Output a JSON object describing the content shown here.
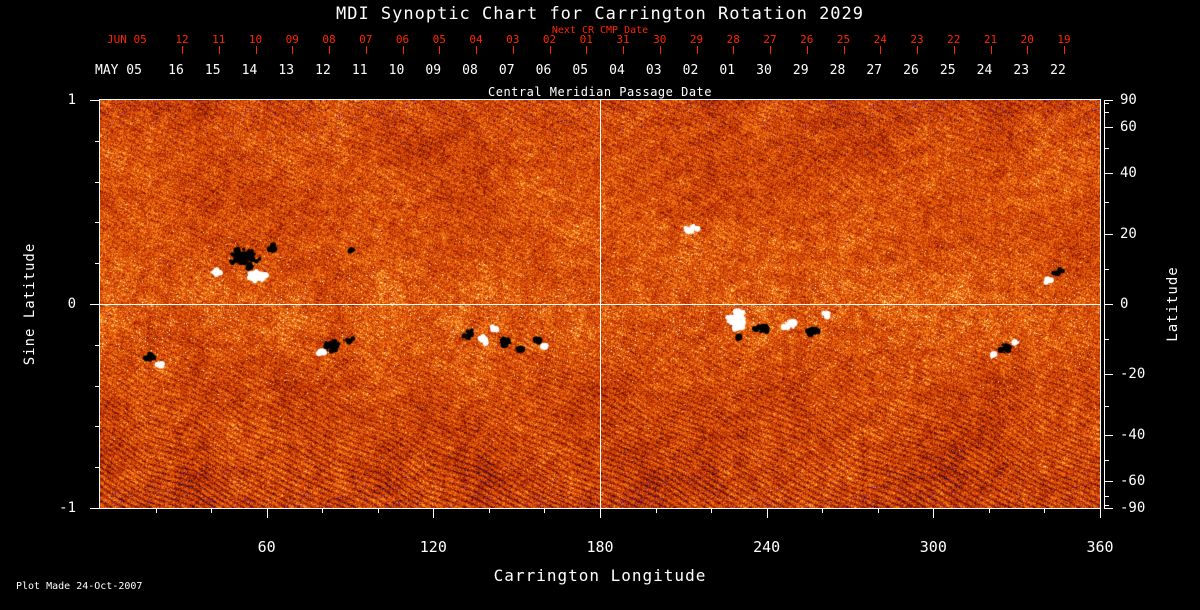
{
  "title": "MDI Synoptic Chart for Carrington Rotation 2029",
  "subtitle_red": "Next CR CMP Date",
  "footer": "Plot Made 24-Oct-2007",
  "axes": {
    "top_red": {
      "label": "JUN 05",
      "ticks": [
        "12",
        "11",
        "10",
        "09",
        "08",
        "07",
        "06",
        "05",
        "04",
        "03",
        "02",
        "01",
        "31",
        "30",
        "29",
        "28",
        "27",
        "26",
        "25",
        "24",
        "23",
        "22",
        "21",
        "20",
        "19"
      ]
    },
    "top_white": {
      "label": "MAY 05",
      "ticks": [
        "16",
        "15",
        "14",
        "13",
        "12",
        "11",
        "10",
        "09",
        "08",
        "07",
        "06",
        "05",
        "04",
        "03",
        "02",
        "01",
        "30",
        "29",
        "28",
        "27",
        "26",
        "25",
        "24",
        "23",
        "22"
      ]
    },
    "top_caption": "Central Meridian Passage Date",
    "bottom": {
      "label": "Carrington Longitude",
      "ticks": [
        "60",
        "120",
        "180",
        "240",
        "300",
        "360"
      ]
    },
    "left": {
      "label": "Sine Latitude",
      "ticks": [
        "1",
        "0",
        "-1"
      ]
    },
    "right": {
      "label": "Latitude",
      "ticks": [
        "90",
        "60",
        "40",
        "20",
        "0",
        "-20",
        "-40",
        "-60",
        "-90"
      ]
    }
  },
  "colors": {
    "background": "#000000",
    "text": "#ffffff",
    "accent_red": "#ff2600",
    "grid": "#ffffff"
  },
  "chart_data": {
    "type": "heatmap",
    "title": "MDI Synoptic Chart for Carrington Rotation 2029",
    "xlabel": "Carrington Longitude",
    "ylabel_left": "Sine Latitude",
    "ylabel_right": "Latitude",
    "x_range": [
      0,
      360
    ],
    "x_ticks": [
      60,
      120,
      180,
      240,
      300,
      360
    ],
    "y_range_sine_latitude": [
      -1,
      1
    ],
    "y_ticks_sine_latitude": [
      1,
      0,
      -1
    ],
    "y_ticks_latitude_deg": [
      90,
      60,
      40,
      20,
      0,
      -20,
      -40,
      -60,
      -90
    ],
    "reference_lines": {
      "vertical_carrington_longitude": 180,
      "horizontal_sine_latitude": 0
    },
    "top_axis_red": {
      "month": "JUN 05",
      "caption": "Next CR CMP Date",
      "days": [
        12,
        11,
        10,
        9,
        8,
        7,
        6,
        5,
        4,
        3,
        2,
        1,
        31,
        30,
        29,
        28,
        27,
        26,
        25,
        24,
        23,
        22,
        21,
        20,
        19
      ]
    },
    "top_axis_white": {
      "month": "MAY 05",
      "caption": "Central Meridian Passage Date",
      "days": [
        16,
        15,
        14,
        13,
        12,
        11,
        10,
        9,
        8,
        7,
        6,
        5,
        4,
        3,
        2,
        1,
        30,
        29,
        28,
        27,
        26,
        25,
        24,
        23,
        22
      ]
    },
    "colormap": "solar magnetogram: orange/red mottled background flux, white = strong positive polarity, black = strong negative polarity, blue/purple specks = noisy edge pixels, diagonal dark streaking strongest in southern hemisphere",
    "colormap_colors": [
      "#1e0a5a",
      "#7c1602",
      "#b73002",
      "#e05408",
      "#f27c18",
      "#fcb03e",
      "#fed880",
      "#fff8de",
      "#000000",
      "#ffffff"
    ],
    "active_regions": [
      {
        "carrington_longitude": 52,
        "latitude_deg": 12,
        "size": "large",
        "polarity": "bipolar black/white"
      },
      {
        "carrington_longitude": 18,
        "latitude_deg": -15,
        "size": "small",
        "polarity": "bipolar"
      },
      {
        "carrington_longitude": 84,
        "latitude_deg": -12,
        "size": "medium",
        "polarity": "bipolar"
      },
      {
        "carrington_longitude": 137,
        "latitude_deg": -10,
        "size": "medium cluster",
        "polarity": "mixed"
      },
      {
        "carrington_longitude": 160,
        "latitude_deg": -11,
        "size": "small",
        "polarity": "bipolar"
      },
      {
        "carrington_longitude": 212,
        "latitude_deg": 21,
        "size": "small",
        "polarity": "plage (bright)"
      },
      {
        "carrington_longitude": 245,
        "latitude_deg": -6,
        "size": "large complex",
        "polarity": "mixed black/white"
      },
      {
        "carrington_longitude": 326,
        "latitude_deg": -12,
        "size": "medium",
        "polarity": "bipolar"
      },
      {
        "carrington_longitude": 345,
        "latitude_deg": 9,
        "size": "small",
        "polarity": "bipolar"
      }
    ],
    "plot_made": "24-Oct-2007"
  }
}
